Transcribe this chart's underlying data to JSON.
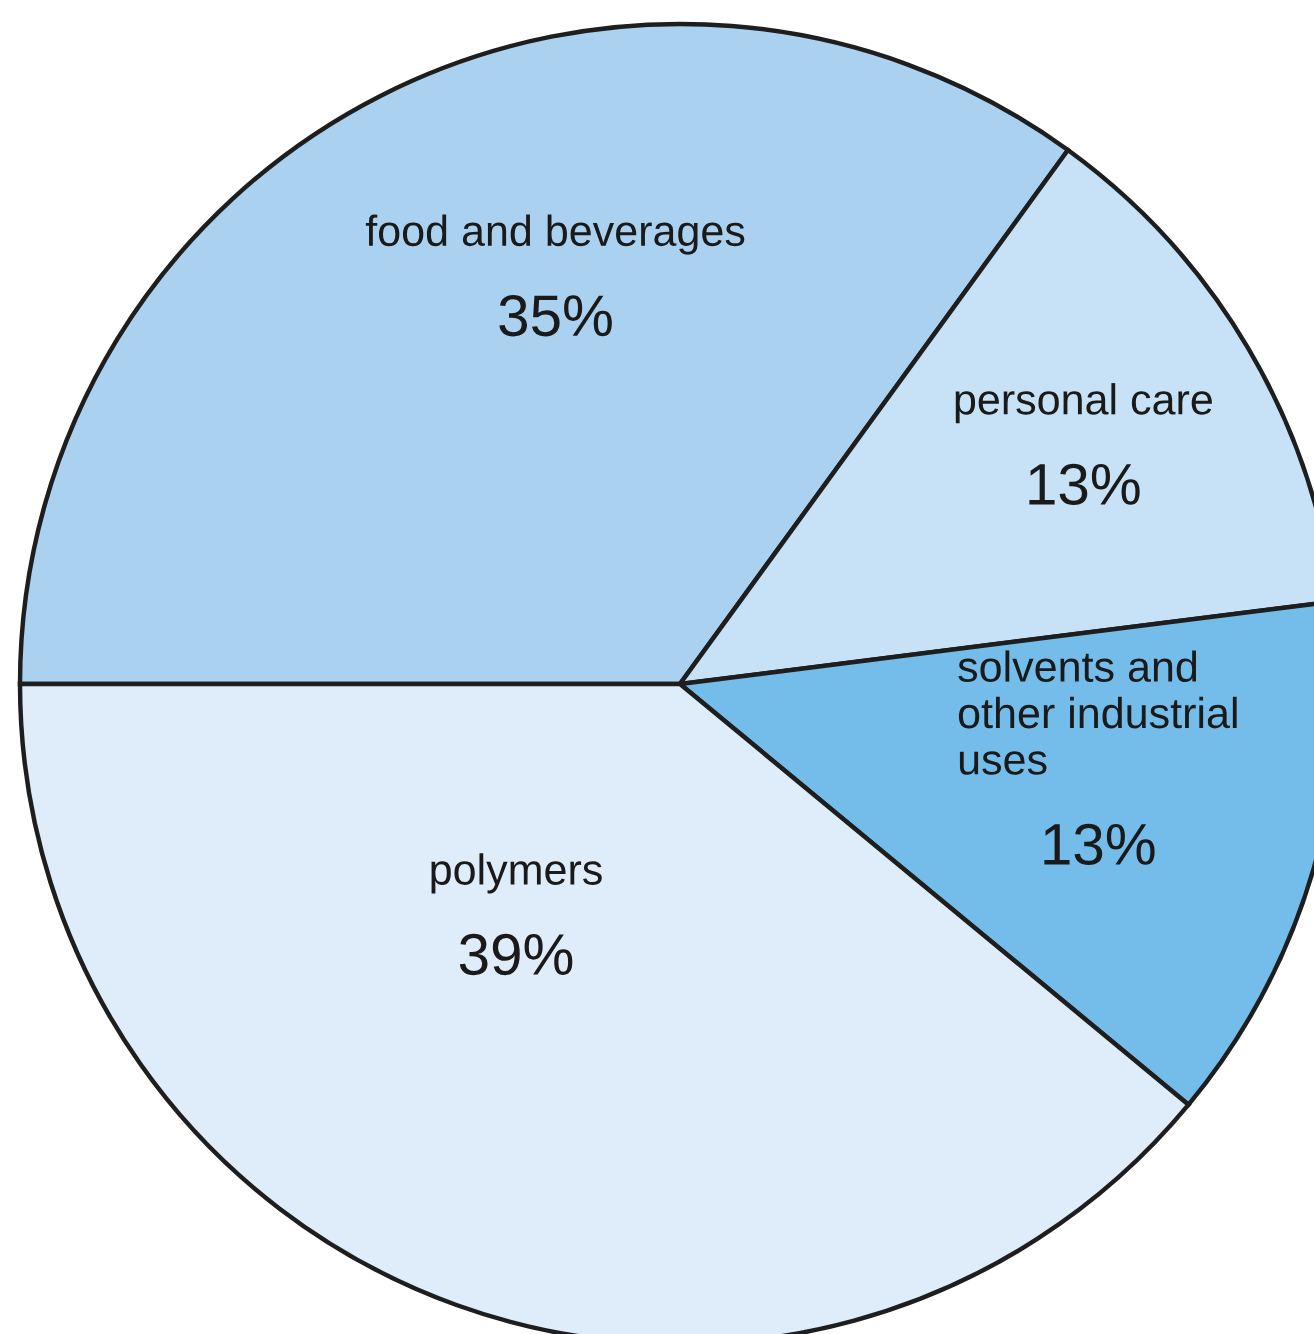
{
  "chart_data": {
    "type": "pie",
    "categories": [
      "food and beverages",
      "personal care",
      "solvents and\nother industrial\nuses",
      "polymers"
    ],
    "values": [
      35,
      13,
      13,
      39
    ],
    "value_labels": [
      "35%",
      "13%",
      "13%",
      "39%"
    ],
    "colors": [
      "#aad2f0",
      "#c7e2f6",
      "#74bdea",
      "#deedf9"
    ]
  }
}
